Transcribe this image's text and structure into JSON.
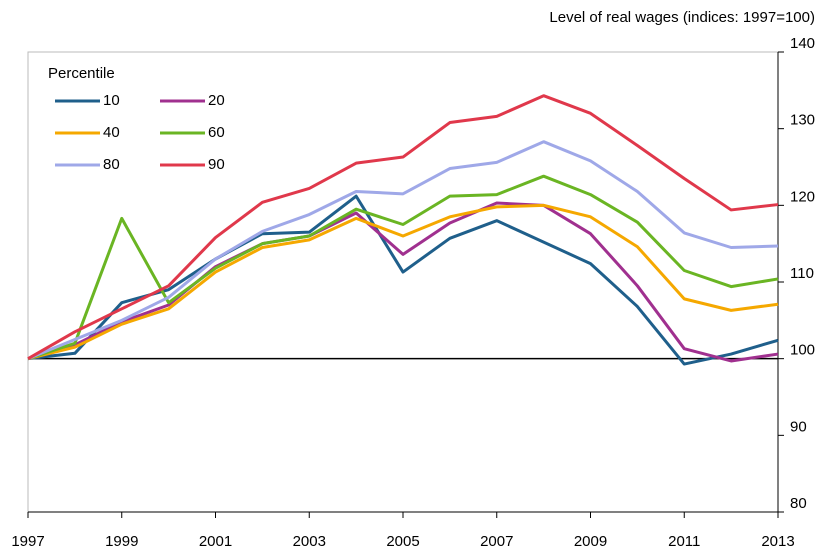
{
  "chart_data": {
    "type": "line",
    "title": "Level of real wages (indices:  1997=100)",
    "legend_title": "Percentile",
    "legend_position": "upper left",
    "x": [
      1997,
      1998,
      1999,
      2000,
      2001,
      2002,
      2003,
      2004,
      2005,
      2006,
      2007,
      2008,
      2009,
      2010,
      2011,
      2012,
      2013
    ],
    "series": [
      {
        "name": "10",
        "color": "#1f5f8b",
        "values": [
          100,
          100.7,
          107.3,
          109,
          113,
          116.3,
          116.5,
          121.2,
          111.3,
          115.7,
          118,
          115.2,
          112.4,
          106.8,
          99.3,
          100.6,
          102.4
        ]
      },
      {
        "name": "20",
        "color": "#a0308f",
        "values": [
          100,
          101.8,
          104.8,
          107,
          112,
          115,
          116,
          119,
          113.6,
          117.7,
          120.3,
          120,
          116.3,
          109.5,
          101.3,
          99.7,
          100.6
        ]
      },
      {
        "name": "40",
        "color": "#f5a800",
        "values": [
          100,
          101.5,
          104.5,
          106.5,
          111.3,
          114.5,
          115.5,
          118.3,
          116,
          118.5,
          119.8,
          120,
          118.5,
          114.6,
          107.8,
          106.3,
          107.1
        ]
      },
      {
        "name": "60",
        "color": "#6ab523",
        "values": [
          100,
          102,
          118.3,
          107.3,
          111.8,
          115,
          116,
          119.5,
          117.5,
          121.2,
          121.4,
          123.8,
          121.4,
          117.8,
          111.5,
          109.4,
          110.4
        ]
      },
      {
        "name": "80",
        "color": "#9fa8e8",
        "values": [
          100,
          102.5,
          105,
          108,
          113,
          116.6,
          118.8,
          121.8,
          121.5,
          124.8,
          125.6,
          128.3,
          125.8,
          121.8,
          116.4,
          114.5,
          114.7
        ]
      },
      {
        "name": "90",
        "color": "#e0384b",
        "values": [
          100,
          103.5,
          106.5,
          109.5,
          115.8,
          120.4,
          122.2,
          125.5,
          126.3,
          130.8,
          131.6,
          134.3,
          132,
          127.8,
          123.5,
          119.4,
          120.1
        ]
      }
    ],
    "reference_line": 100,
    "xlim": [
      1997,
      2013
    ],
    "xticks": [
      1997,
      1999,
      2001,
      2003,
      2005,
      2007,
      2009,
      2011,
      2013
    ],
    "ylim": [
      80,
      140
    ],
    "yticks": [
      80,
      90,
      100,
      110,
      120,
      130,
      140
    ],
    "y_axis_side": "right",
    "grid": false
  }
}
